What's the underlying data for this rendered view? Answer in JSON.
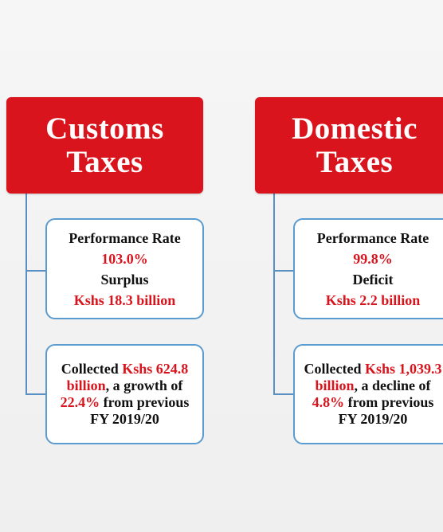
{
  "columns": [
    {
      "title": "Customs Taxes",
      "summary": {
        "label1": "Performance Rate",
        "value1": "103.0%",
        "label2": "Surplus",
        "value2": "Kshs 18.3 billion"
      },
      "details": [
        {
          "text": "Collected ",
          "highlight": false
        },
        {
          "text": "Kshs 624.8 billion",
          "highlight": true
        },
        {
          "text": ", a growth of ",
          "highlight": false
        },
        {
          "text": "22.4%",
          "highlight": true
        },
        {
          "text": " from previous FY 2019/20",
          "highlight": false
        }
      ]
    },
    {
      "title": "Domestic Taxes",
      "summary": {
        "label1": "Performance Rate",
        "value1": "99.8%",
        "label2": "Deficit",
        "value2": "Kshs 2.2 billion"
      },
      "details": [
        {
          "text": "Collected ",
          "highlight": false
        },
        {
          "text": "Kshs 1,039.3 billion",
          "highlight": true
        },
        {
          "text": ", a decline of ",
          "highlight": false
        },
        {
          "text": "4.8%",
          "highlight": true
        },
        {
          "text": " from previous FY 2019/20",
          "highlight": false
        }
      ]
    }
  ]
}
